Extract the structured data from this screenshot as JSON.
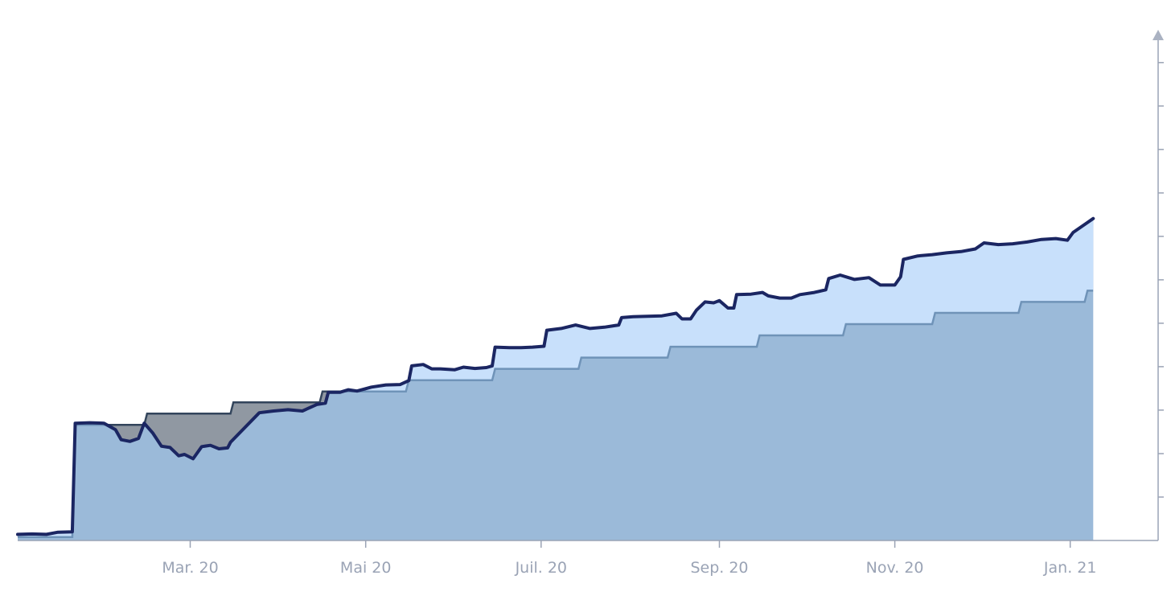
{
  "chart_data": {
    "type": "area",
    "title": "",
    "xlabel": "",
    "ylabel": "",
    "x_range": [
      "2020-01-01",
      "2021-01-31"
    ],
    "ylim": [
      0,
      1.17
    ],
    "grid": false,
    "x_ticks": [
      {
        "date": "2020-03-01",
        "label": "Mar. 20"
      },
      {
        "date": "2020-05-01",
        "label": "Mai 20"
      },
      {
        "date": "2020-07-01",
        "label": "Juil. 20"
      },
      {
        "date": "2020-09-01",
        "label": "Sep. 20"
      },
      {
        "date": "2020-11-01",
        "label": "Nov. 20"
      },
      {
        "date": "2021-01-01",
        "label": "Jan. 21"
      }
    ],
    "y_ticks": [
      0.1,
      0.2,
      0.3,
      0.4,
      0.5,
      0.6,
      0.7,
      0.8,
      0.9,
      1.0,
      1.1
    ],
    "series": [
      {
        "role": "portfolio",
        "color": "#1b2662",
        "points": [
          [
            "2020-01-01",
            0.014
          ],
          [
            "2020-01-06",
            0.015
          ],
          [
            "2020-01-11",
            0.014
          ],
          [
            "2020-01-15",
            0.019
          ],
          [
            "2020-01-20",
            0.02
          ],
          [
            "2020-01-21",
            0.27
          ],
          [
            "2020-01-26",
            0.271
          ],
          [
            "2020-01-31",
            0.27
          ],
          [
            "2020-02-04",
            0.255
          ],
          [
            "2020-02-06",
            0.232
          ],
          [
            "2020-02-09",
            0.228
          ],
          [
            "2020-02-12",
            0.235
          ],
          [
            "2020-02-14",
            0.27
          ],
          [
            "2020-02-17",
            0.247
          ],
          [
            "2020-02-20",
            0.217
          ],
          [
            "2020-02-23",
            0.214
          ],
          [
            "2020-02-26",
            0.195
          ],
          [
            "2020-02-28",
            0.198
          ],
          [
            "2020-03-02",
            0.188
          ],
          [
            "2020-03-05",
            0.216
          ],
          [
            "2020-03-08",
            0.219
          ],
          [
            "2020-03-11",
            0.211
          ],
          [
            "2020-03-14",
            0.213
          ],
          [
            "2020-03-15",
            0.226
          ],
          [
            "2020-03-25",
            0.294
          ],
          [
            "2020-03-30",
            0.298
          ],
          [
            "2020-04-04",
            0.301
          ],
          [
            "2020-04-09",
            0.298
          ],
          [
            "2020-04-14",
            0.313
          ],
          [
            "2020-04-17",
            0.316
          ],
          [
            "2020-04-18",
            0.341
          ],
          [
            "2020-04-22",
            0.341
          ],
          [
            "2020-04-25",
            0.347
          ],
          [
            "2020-04-28",
            0.344
          ],
          [
            "2020-05-03",
            0.353
          ],
          [
            "2020-05-08",
            0.358
          ],
          [
            "2020-05-13",
            0.359
          ],
          [
            "2020-05-16",
            0.368
          ],
          [
            "2020-05-17",
            0.402
          ],
          [
            "2020-05-21",
            0.405
          ],
          [
            "2020-05-24",
            0.395
          ],
          [
            "2020-05-27",
            0.395
          ],
          [
            "2020-06-01",
            0.393
          ],
          [
            "2020-06-04",
            0.399
          ],
          [
            "2020-06-08",
            0.396
          ],
          [
            "2020-06-12",
            0.398
          ],
          [
            "2020-06-14",
            0.402
          ],
          [
            "2020-06-15",
            0.445
          ],
          [
            "2020-06-20",
            0.444
          ],
          [
            "2020-06-24",
            0.444
          ],
          [
            "2020-06-28",
            0.445
          ],
          [
            "2020-07-02",
            0.447
          ],
          [
            "2020-07-03",
            0.484
          ],
          [
            "2020-07-08",
            0.488
          ],
          [
            "2020-07-13",
            0.496
          ],
          [
            "2020-07-18",
            0.488
          ],
          [
            "2020-07-23",
            0.491
          ],
          [
            "2020-07-28",
            0.496
          ],
          [
            "2020-07-29",
            0.513
          ],
          [
            "2020-08-02",
            0.515
          ],
          [
            "2020-08-07",
            0.516
          ],
          [
            "2020-08-12",
            0.517
          ],
          [
            "2020-08-17",
            0.523
          ],
          [
            "2020-08-19",
            0.51
          ],
          [
            "2020-08-22",
            0.51
          ],
          [
            "2020-08-24",
            0.53
          ],
          [
            "2020-08-27",
            0.549
          ],
          [
            "2020-08-30",
            0.547
          ],
          [
            "2020-09-01",
            0.552
          ],
          [
            "2020-09-04",
            0.535
          ],
          [
            "2020-09-06",
            0.535
          ],
          [
            "2020-09-07",
            0.566
          ],
          [
            "2020-09-12",
            0.567
          ],
          [
            "2020-09-16",
            0.571
          ],
          [
            "2020-09-18",
            0.563
          ],
          [
            "2020-09-22",
            0.558
          ],
          [
            "2020-09-26",
            0.558
          ],
          [
            "2020-09-29",
            0.566
          ],
          [
            "2020-10-04",
            0.571
          ],
          [
            "2020-10-08",
            0.577
          ],
          [
            "2020-10-09",
            0.603
          ],
          [
            "2020-10-13",
            0.611
          ],
          [
            "2020-10-18",
            0.601
          ],
          [
            "2020-10-23",
            0.605
          ],
          [
            "2020-10-27",
            0.588
          ],
          [
            "2020-11-01",
            0.588
          ],
          [
            "2020-11-03",
            0.607
          ],
          [
            "2020-11-04",
            0.647
          ],
          [
            "2020-11-09",
            0.655
          ],
          [
            "2020-11-14",
            0.658
          ],
          [
            "2020-11-19",
            0.662
          ],
          [
            "2020-11-24",
            0.665
          ],
          [
            "2020-11-29",
            0.671
          ],
          [
            "2020-12-02",
            0.685
          ],
          [
            "2020-12-07",
            0.681
          ],
          [
            "2020-12-12",
            0.683
          ],
          [
            "2020-12-17",
            0.687
          ],
          [
            "2020-12-22",
            0.693
          ],
          [
            "2020-12-27",
            0.695
          ],
          [
            "2020-12-31",
            0.691
          ],
          [
            "2021-01-02",
            0.709
          ],
          [
            "2021-01-07",
            0.732
          ],
          [
            "2021-01-09",
            0.741
          ]
        ]
      },
      {
        "role": "cost-basis",
        "color": "#33455c",
        "points": [
          [
            "2020-01-01",
            0.008
          ],
          [
            "2020-01-20",
            0.008
          ],
          [
            "2020-01-21",
            0.266
          ],
          [
            "2020-02-14",
            0.266
          ],
          [
            "2020-02-15",
            0.292
          ],
          [
            "2020-03-15",
            0.292
          ],
          [
            "2020-03-16",
            0.318
          ],
          [
            "2020-04-15",
            0.318
          ],
          [
            "2020-04-16",
            0.343
          ],
          [
            "2020-05-15",
            0.343
          ],
          [
            "2020-05-16",
            0.369
          ],
          [
            "2020-06-14",
            0.369
          ],
          [
            "2020-06-15",
            0.395
          ],
          [
            "2020-07-14",
            0.395
          ],
          [
            "2020-07-15",
            0.421
          ],
          [
            "2020-08-14",
            0.421
          ],
          [
            "2020-08-15",
            0.446
          ],
          [
            "2020-09-14",
            0.446
          ],
          [
            "2020-09-15",
            0.472
          ],
          [
            "2020-10-14",
            0.472
          ],
          [
            "2020-10-15",
            0.498
          ],
          [
            "2020-11-14",
            0.498
          ],
          [
            "2020-11-15",
            0.524
          ],
          [
            "2020-12-14",
            0.524
          ],
          [
            "2020-12-15",
            0.549
          ],
          [
            "2021-01-06",
            0.549
          ],
          [
            "2021-01-07",
            0.575
          ],
          [
            "2021-01-09",
            0.575
          ]
        ]
      }
    ],
    "colors": {
      "area_below_value": "#9bbad9",
      "gain_fill": "#c8e0fb",
      "loss_fill": "#9098a2",
      "axis": "#9aa3b5",
      "tick_label": "#9aa3b5"
    }
  }
}
